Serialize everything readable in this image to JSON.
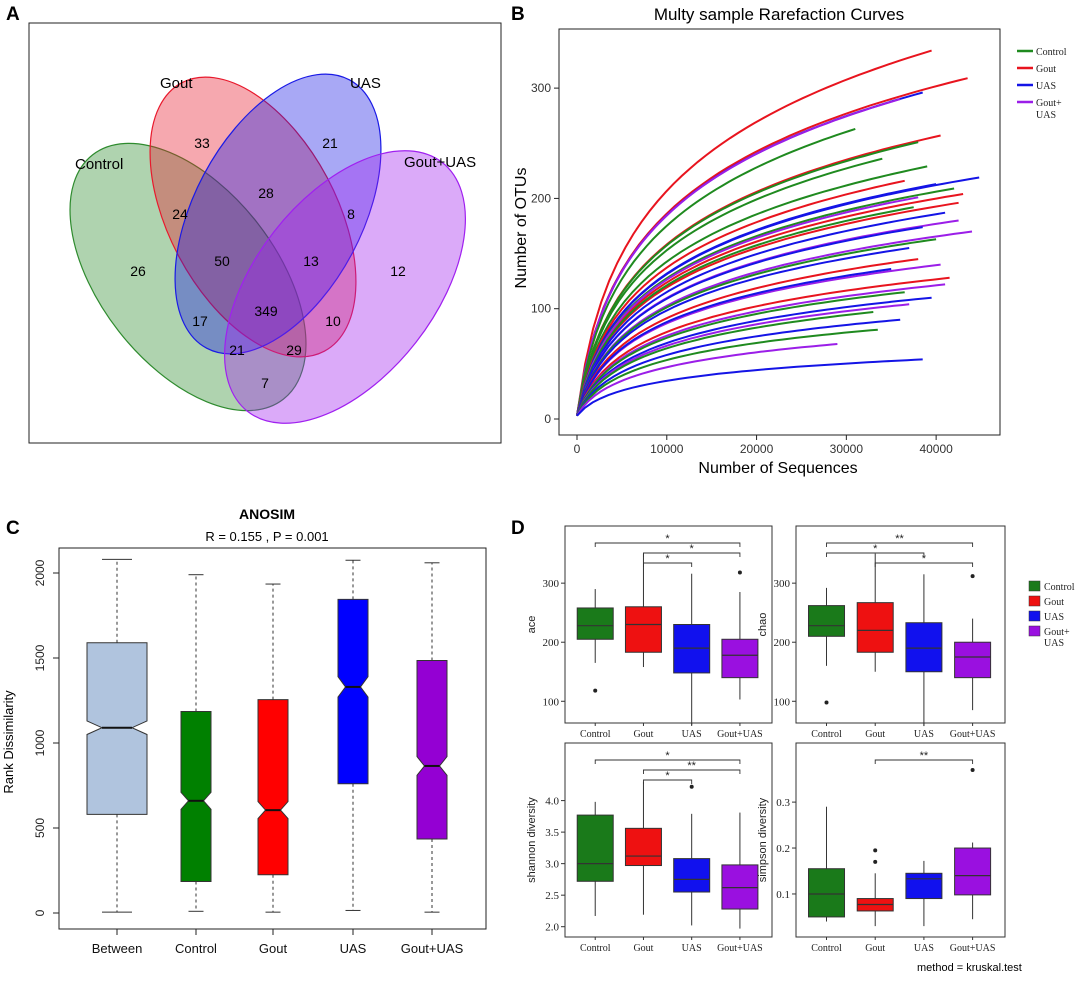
{
  "panel_labels": [
    "A",
    "B",
    "C",
    "D"
  ],
  "chart_data": [
    {
      "panel": "A",
      "type": "venn",
      "sets": [
        "Control",
        "Gout",
        "UAS",
        "Gout+UAS"
      ],
      "colors": {
        "Control": "#2e8b2e",
        "Gout": "#e8192c",
        "UAS": "#1a1ae6",
        "Gout+UAS": "#a020f0"
      },
      "regions": [
        {
          "id": "control_only",
          "value": "26"
        },
        {
          "id": "gout_only",
          "value": "33"
        },
        {
          "id": "uas_only",
          "value": "21"
        },
        {
          "id": "goutuas_only",
          "value": "12"
        },
        {
          "id": "control_gout",
          "value": "24"
        },
        {
          "id": "gout_uas",
          "value": "28"
        },
        {
          "id": "uas_goutuas",
          "value": "8"
        },
        {
          "id": "control_gout_uas",
          "value": "50"
        },
        {
          "id": "gout_uas_goutuas",
          "value": "13"
        },
        {
          "id": "control_uas",
          "value": "17"
        },
        {
          "id": "all",
          "value": "349"
        },
        {
          "id": "control_gout_goutuas",
          "value": "10"
        },
        {
          "id": "control_uas_goutuas",
          "value": "21"
        },
        {
          "id": "gout_goutuas",
          "value": "29"
        },
        {
          "id": "control_goutuas",
          "value": "7"
        }
      ]
    },
    {
      "panel": "B",
      "type": "line",
      "title": "Multy sample Rarefaction Curves",
      "xlabel": "Number of Sequences",
      "ylabel": "Number of OTUs",
      "xlim": [
        0,
        46000
      ],
      "ylim": [
        0,
        340
      ],
      "xticks": [
        "0",
        "10000",
        "20000",
        "30000",
        "40000"
      ],
      "xtick_values": [
        0,
        10000,
        20000,
        30000,
        40000
      ],
      "yticks": [
        "0",
        "100",
        "200",
        "300"
      ],
      "ytick_values": [
        0,
        100,
        200,
        300
      ],
      "legend": [
        {
          "label": "Control",
          "color": "#1f8a1f"
        },
        {
          "label": "Gout",
          "color": "#e8141e"
        },
        {
          "label": "UAS",
          "color": "#1414e6"
        },
        {
          "label": "Gout+\nUAS",
          "color": "#9b1ee8"
        }
      ],
      "series": [
        {
          "group": "Gout",
          "final_x": 39500,
          "final_y": 334
        },
        {
          "group": "Gout",
          "final_x": 43500,
          "final_y": 309
        },
        {
          "group": "UAS",
          "final_x": 38500,
          "final_y": 296
        },
        {
          "group": "Gout+UAS",
          "final_x": 36000,
          "final_y": 290
        },
        {
          "group": "Control",
          "final_x": 31000,
          "final_y": 263
        },
        {
          "group": "Gout",
          "final_x": 40500,
          "final_y": 257
        },
        {
          "group": "Control",
          "final_x": 38000,
          "final_y": 251
        },
        {
          "group": "Control",
          "final_x": 34000,
          "final_y": 236
        },
        {
          "group": "Control",
          "final_x": 39000,
          "final_y": 229
        },
        {
          "group": "UAS",
          "final_x": 44800,
          "final_y": 219
        },
        {
          "group": "Gout",
          "final_x": 36500,
          "final_y": 216
        },
        {
          "group": "UAS",
          "final_x": 40000,
          "final_y": 213
        },
        {
          "group": "Control",
          "final_x": 42000,
          "final_y": 209
        },
        {
          "group": "Gout",
          "final_x": 43000,
          "final_y": 204
        },
        {
          "group": "Gout+UAS",
          "final_x": 38000,
          "final_y": 201
        },
        {
          "group": "Gout",
          "final_x": 42500,
          "final_y": 196
        },
        {
          "group": "Control",
          "final_x": 37500,
          "final_y": 192
        },
        {
          "group": "UAS",
          "final_x": 41000,
          "final_y": 187
        },
        {
          "group": "Gout+UAS",
          "final_x": 42500,
          "final_y": 180
        },
        {
          "group": "UAS",
          "final_x": 38500,
          "final_y": 174
        },
        {
          "group": "Gout+UAS",
          "final_x": 44000,
          "final_y": 170
        },
        {
          "group": "Control",
          "final_x": 40000,
          "final_y": 163
        },
        {
          "group": "UAS",
          "final_x": 37000,
          "final_y": 155
        },
        {
          "group": "Gout",
          "final_x": 38000,
          "final_y": 145
        },
        {
          "group": "Gout+UAS",
          "final_x": 40500,
          "final_y": 140
        },
        {
          "group": "UAS",
          "final_x": 35000,
          "final_y": 136
        },
        {
          "group": "Gout",
          "final_x": 41500,
          "final_y": 128
        },
        {
          "group": "Gout+UAS",
          "final_x": 41000,
          "final_y": 122
        },
        {
          "group": "Control",
          "final_x": 36500,
          "final_y": 115
        },
        {
          "group": "UAS",
          "final_x": 39500,
          "final_y": 110
        },
        {
          "group": "Gout+UAS",
          "final_x": 37000,
          "final_y": 104
        },
        {
          "group": "Control",
          "final_x": 33000,
          "final_y": 97
        },
        {
          "group": "UAS",
          "final_x": 36000,
          "final_y": 90
        },
        {
          "group": "Control",
          "final_x": 33500,
          "final_y": 81
        },
        {
          "group": "Gout+UAS",
          "final_x": 29000,
          "final_y": 68
        },
        {
          "group": "UAS",
          "final_x": 38500,
          "final_y": 54
        }
      ]
    },
    {
      "panel": "C",
      "type": "boxplot",
      "title": "ANOSIM",
      "subtitle": "R =  0.155 ,  P =  0.001",
      "ylabel": "Rank Dissimilarity",
      "ylim": [
        0,
        2100
      ],
      "yticks": [
        "0",
        "500",
        "1000",
        "1500",
        "2000"
      ],
      "ytick_values": [
        0,
        500,
        1000,
        1500,
        2000
      ],
      "categories": [
        "Between",
        "Control",
        "Gout",
        "UAS",
        "Gout+UAS"
      ],
      "boxes": [
        {
          "name": "Between",
          "color": "#b0c4de",
          "min": 5,
          "q1": 580,
          "median": 1090,
          "q3": 1590,
          "max": 2080,
          "notch_lo": 1050,
          "notch_hi": 1130
        },
        {
          "name": "Control",
          "color": "#008000",
          "min": 10,
          "q1": 185,
          "median": 660,
          "q3": 1185,
          "max": 1990,
          "notch_lo": 610,
          "notch_hi": 710
        },
        {
          "name": "Gout",
          "color": "#ff0000",
          "min": 5,
          "q1": 225,
          "median": 605,
          "q3": 1255,
          "max": 1935,
          "notch_lo": 555,
          "notch_hi": 655
        },
        {
          "name": "UAS",
          "color": "#0000ff",
          "min": 15,
          "q1": 760,
          "median": 1330,
          "q3": 1845,
          "max": 2075,
          "notch_lo": 1270,
          "notch_hi": 1390
        },
        {
          "name": "Gout+UAS",
          "color": "#9400d3",
          "min": 5,
          "q1": 435,
          "median": 865,
          "q3": 1485,
          "max": 2060,
          "notch_lo": 810,
          "notch_hi": 920
        }
      ]
    },
    {
      "panel": "D",
      "type": "boxplot_grid",
      "method_note": "method = kruskal.test",
      "categories": [
        "Control",
        "Gout",
        "UAS",
        "Gout+UAS"
      ],
      "legend": [
        {
          "label": "Control",
          "color": "#1a7a1a"
        },
        {
          "label": "Gout",
          "color": "#ee1111"
        },
        {
          "label": "UAS",
          "color": "#1111ee"
        },
        {
          "label": "Gout+\nUAS",
          "color": "#9a10e0"
        }
      ],
      "subplots": [
        {
          "ylabel": "ace",
          "ylim": [
            70,
            390
          ],
          "yticks": [
            "100",
            "200",
            "300"
          ],
          "ytick_values": [
            100,
            200,
            300
          ],
          "boxes": [
            {
              "min": 165,
              "q1": 205,
              "median": 228,
              "q3": 258,
              "max": 290,
              "outliers": [
                118
              ]
            },
            {
              "min": 158,
              "q1": 183,
              "median": 230,
              "q3": 260,
              "max": 350,
              "outliers": []
            },
            {
              "min": 60,
              "q1": 148,
              "median": 190,
              "q3": 230,
              "max": 316,
              "outliers": []
            },
            {
              "min": 103,
              "q1": 140,
              "median": 178,
              "q3": 205,
              "max": 285,
              "outliers": [
                318
              ]
            }
          ],
          "brackets": [
            {
              "from": 0,
              "to": 3,
              "label": "*",
              "level": 0
            },
            {
              "from": 1,
              "to": 3,
              "label": "*",
              "level": 1
            },
            {
              "from": 1,
              "to": 2,
              "label": "*",
              "level": 2
            }
          ]
        },
        {
          "ylabel": "chao",
          "ylim": [
            70,
            390
          ],
          "yticks": [
            "100",
            "200",
            "300"
          ],
          "ytick_values": [
            100,
            200,
            300
          ],
          "boxes": [
            {
              "min": 160,
              "q1": 210,
              "median": 228,
              "q3": 262,
              "max": 292,
              "outliers": [
                98
              ]
            },
            {
              "min": 150,
              "q1": 183,
              "median": 220,
              "q3": 267,
              "max": 350,
              "outliers": []
            },
            {
              "min": 58,
              "q1": 150,
              "median": 190,
              "q3": 233,
              "max": 315,
              "outliers": []
            },
            {
              "min": 85,
              "q1": 140,
              "median": 175,
              "q3": 200,
              "max": 240,
              "outliers": [
                312
              ]
            }
          ],
          "brackets": [
            {
              "from": 0,
              "to": 3,
              "label": "**",
              "level": 0
            },
            {
              "from": 0,
              "to": 2,
              "label": "*",
              "level": 1
            },
            {
              "from": 1,
              "to": 3,
              "label": "*",
              "level": 2
            }
          ]
        },
        {
          "ylabel": "shannon diversity",
          "ylim": [
            1.9,
            4.85
          ],
          "yticks": [
            "2.0",
            "2.5",
            "3.0",
            "3.5",
            "4.0"
          ],
          "ytick_values": [
            2.0,
            2.5,
            3.0,
            3.5,
            4.0
          ],
          "boxes": [
            {
              "min": 2.17,
              "q1": 2.72,
              "median": 3.0,
              "q3": 3.77,
              "max": 3.98,
              "outliers": []
            },
            {
              "min": 2.19,
              "q1": 2.97,
              "median": 3.12,
              "q3": 3.56,
              "max": 4.3,
              "outliers": []
            },
            {
              "min": 2.02,
              "q1": 2.55,
              "median": 2.75,
              "q3": 3.08,
              "max": 3.79,
              "outliers": [
                4.22
              ]
            },
            {
              "min": 1.97,
              "q1": 2.28,
              "median": 2.62,
              "q3": 2.98,
              "max": 3.81,
              "outliers": []
            }
          ],
          "brackets": [
            {
              "from": 0,
              "to": 3,
              "label": "*",
              "level": 0
            },
            {
              "from": 1,
              "to": 3,
              "label": "**",
              "level": 1
            },
            {
              "from": 1,
              "to": 2,
              "label": "*",
              "level": 2
            }
          ]
        },
        {
          "ylabel": "simpson diversity",
          "ylim": [
            0.015,
            0.42
          ],
          "yticks": [
            "0.1",
            "0.2",
            "0.3"
          ],
          "ytick_values": [
            0.1,
            0.2,
            0.3
          ],
          "boxes": [
            {
              "min": 0.04,
              "q1": 0.05,
              "median": 0.1,
              "q3": 0.155,
              "max": 0.29,
              "outliers": []
            },
            {
              "min": 0.03,
              "q1": 0.063,
              "median": 0.077,
              "q3": 0.09,
              "max": 0.145,
              "outliers": [
                0.17,
                0.195
              ]
            },
            {
              "min": 0.03,
              "q1": 0.09,
              "median": 0.133,
              "q3": 0.145,
              "max": 0.172,
              "outliers": []
            },
            {
              "min": 0.045,
              "q1": 0.098,
              "median": 0.14,
              "q3": 0.2,
              "max": 0.212,
              "outliers": [
                0.37
              ]
            }
          ],
          "brackets": [
            {
              "from": 1,
              "to": 3,
              "label": "**",
              "level": 0
            }
          ]
        }
      ]
    }
  ]
}
